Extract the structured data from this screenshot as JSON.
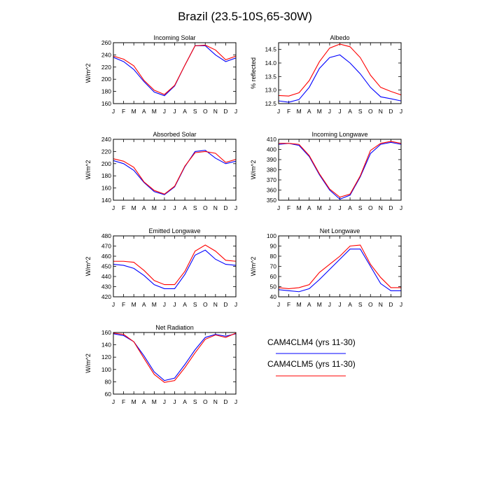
{
  "figure_title": "Brazil (23.5-10S,65-30W)",
  "legend": {
    "items": [
      {
        "label": "CAM4CLM4 (yrs 11-30)",
        "color": "#0000ff"
      },
      {
        "label": "CAM4CLM5 (yrs 11-30)",
        "color": "#ff0000"
      }
    ]
  },
  "chart_data": [
    {
      "type": "line",
      "title": "Incoming Solar",
      "xlabel": "",
      "ylabel": "W/m^2",
      "x": [
        "J",
        "F",
        "M",
        "A",
        "M",
        "J",
        "J",
        "A",
        "S",
        "O",
        "N",
        "D",
        "J"
      ],
      "ylim": [
        160,
        260
      ],
      "yticks": [
        160,
        180,
        200,
        220,
        240,
        260
      ],
      "series": [
        {
          "name": "CAM4CLM4 (yrs 11-30)",
          "color": "#0000ff",
          "values": [
            236,
            229,
            216,
            196,
            179,
            173,
            189,
            223,
            255,
            255,
            240,
            229,
            235
          ]
        },
        {
          "name": "CAM4CLM5 (yrs 11-30)",
          "color": "#ff0000",
          "values": [
            238,
            233,
            222,
            198,
            182,
            175,
            190,
            223,
            255,
            256,
            248,
            232,
            238
          ]
        }
      ]
    },
    {
      "type": "line",
      "title": "Albedo",
      "xlabel": "",
      "ylabel": "% reflected",
      "x": [
        "J",
        "F",
        "M",
        "A",
        "M",
        "J",
        "J",
        "A",
        "S",
        "O",
        "N",
        "D",
        "J"
      ],
      "ylim": [
        12.5,
        14.75
      ],
      "yticks": [
        12.5,
        13.0,
        13.5,
        14.0,
        14.5
      ],
      "series": [
        {
          "name": "CAM4CLM4 (yrs 11-30)",
          "color": "#0000ff",
          "values": [
            12.6,
            12.55,
            12.65,
            13.1,
            13.8,
            14.2,
            14.3,
            14.0,
            13.6,
            13.1,
            12.75,
            12.68,
            12.6
          ]
        },
        {
          "name": "CAM4CLM5 (yrs 11-30)",
          "color": "#ff0000",
          "values": [
            12.8,
            12.78,
            12.9,
            13.35,
            14.05,
            14.55,
            14.7,
            14.6,
            14.2,
            13.55,
            13.1,
            12.95,
            12.82
          ]
        }
      ]
    },
    {
      "type": "line",
      "title": "Absorbed Solar",
      "xlabel": "",
      "ylabel": "W/m^2",
      "x": [
        "J",
        "F",
        "M",
        "A",
        "M",
        "J",
        "J",
        "A",
        "S",
        "O",
        "N",
        "D",
        "J"
      ],
      "ylim": [
        140,
        240
      ],
      "yticks": [
        140,
        160,
        180,
        200,
        220,
        240
      ],
      "series": [
        {
          "name": "CAM4CLM4 (yrs 11-30)",
          "color": "#0000ff",
          "values": [
            205,
            200,
            189,
            169,
            154,
            149,
            162,
            195,
            220,
            222,
            209,
            200,
            204
          ]
        },
        {
          "name": "CAM4CLM5 (yrs 11-30)",
          "color": "#ff0000",
          "values": [
            208,
            204,
            194,
            170,
            156,
            150,
            163,
            196,
            218,
            220,
            217,
            202,
            207
          ]
        }
      ]
    },
    {
      "type": "line",
      "title": "Incoming Longwave",
      "xlabel": "",
      "ylabel": "W/m^2",
      "x": [
        "J",
        "F",
        "M",
        "A",
        "M",
        "J",
        "J",
        "A",
        "S",
        "O",
        "N",
        "D",
        "J"
      ],
      "ylim": [
        350,
        410
      ],
      "yticks": [
        350,
        360,
        370,
        380,
        390,
        400,
        410
      ],
      "series": [
        {
          "name": "CAM4CLM4 (yrs 11-30)",
          "color": "#0000ff",
          "values": [
            405,
            406,
            404,
            393,
            375,
            360,
            351,
            355,
            373,
            396,
            405,
            407,
            405
          ]
        },
        {
          "name": "CAM4CLM5 (yrs 11-30)",
          "color": "#ff0000",
          "values": [
            406,
            406,
            405,
            394,
            376,
            361,
            353,
            356,
            374,
            399,
            406,
            408,
            406
          ]
        }
      ]
    },
    {
      "type": "line",
      "title": "Emitted Longwave",
      "xlabel": "",
      "ylabel": "W/m^2",
      "x": [
        "J",
        "F",
        "M",
        "A",
        "M",
        "J",
        "J",
        "A",
        "S",
        "O",
        "N",
        "D",
        "J"
      ],
      "ylim": [
        420,
        480
      ],
      "yticks": [
        420,
        430,
        440,
        450,
        460,
        470,
        480
      ],
      "series": [
        {
          "name": "CAM4CLM4 (yrs 11-30)",
          "color": "#0000ff",
          "values": [
            452,
            451,
            448,
            441,
            432,
            428,
            428,
            442,
            461,
            466,
            457,
            452,
            451
          ]
        },
        {
          "name": "CAM4CLM5 (yrs 11-30)",
          "color": "#ff0000",
          "values": [
            455,
            455,
            454,
            446,
            436,
            432,
            432,
            445,
            465,
            471,
            465,
            456,
            455
          ]
        }
      ]
    },
    {
      "type": "line",
      "title": "Net Longwave",
      "xlabel": "",
      "ylabel": "W/m^2",
      "x": [
        "J",
        "F",
        "M",
        "A",
        "M",
        "J",
        "J",
        "A",
        "S",
        "O",
        "N",
        "D",
        "J"
      ],
      "ylim": [
        40,
        100
      ],
      "yticks": [
        40,
        50,
        60,
        70,
        80,
        90,
        100
      ],
      "series": [
        {
          "name": "CAM4CLM4 (yrs 11-30)",
          "color": "#0000ff",
          "values": [
            47,
            46,
            45,
            48,
            57,
            67,
            77,
            87,
            87,
            70,
            53,
            46,
            46
          ]
        },
        {
          "name": "CAM4CLM5 (yrs 11-30)",
          "color": "#ff0000",
          "values": [
            49,
            48,
            49,
            52,
            64,
            72,
            80,
            90,
            91,
            72,
            59,
            49,
            49
          ]
        }
      ]
    },
    {
      "type": "line",
      "title": "Net Radiation",
      "xlabel": "",
      "ylabel": "W/m^2",
      "x": [
        "J",
        "F",
        "M",
        "A",
        "M",
        "J",
        "J",
        "A",
        "S",
        "O",
        "N",
        "D",
        "J"
      ],
      "ylim": [
        60,
        160
      ],
      "yticks": [
        60,
        80,
        100,
        120,
        140,
        160
      ],
      "series": [
        {
          "name": "CAM4CLM4 (yrs 11-30)",
          "color": "#0000ff",
          "values": [
            158,
            155,
            145,
            122,
            96,
            82,
            86,
            108,
            132,
            152,
            157,
            154,
            158
          ]
        },
        {
          "name": "CAM4CLM5 (yrs 11-30)",
          "color": "#ff0000",
          "values": [
            159,
            157,
            145,
            118,
            92,
            79,
            82,
            103,
            127,
            149,
            156,
            152,
            159
          ]
        }
      ]
    }
  ]
}
